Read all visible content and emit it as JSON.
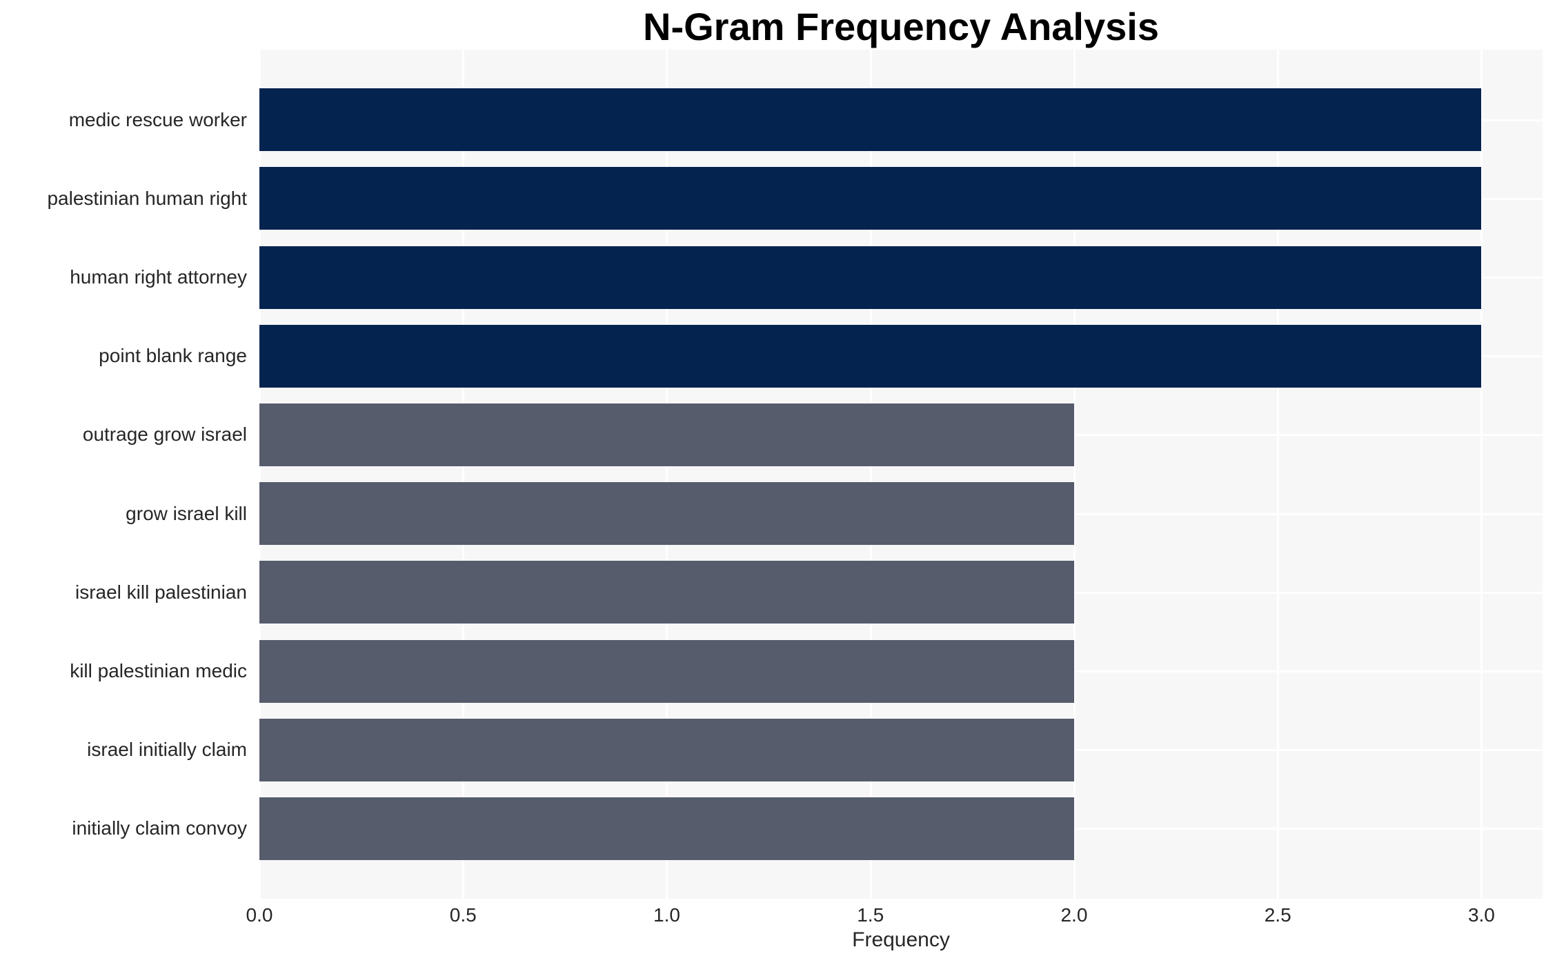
{
  "chart_data": {
    "type": "bar",
    "orientation": "horizontal",
    "title": "N-Gram Frequency Analysis",
    "xlabel": "Frequency",
    "ylabel": "",
    "categories": [
      "medic rescue worker",
      "palestinian human right",
      "human right attorney",
      "point blank range",
      "outrage grow israel",
      "grow israel kill",
      "israel kill palestinian",
      "kill palestinian medic",
      "israel initially claim",
      "initially claim convoy"
    ],
    "values": [
      3,
      3,
      3,
      3,
      2,
      2,
      2,
      2,
      2,
      2
    ],
    "bar_colors": [
      "#04234E",
      "#04234E",
      "#04234E",
      "#04234E",
      "#565C6C",
      "#565C6C",
      "#565C6C",
      "#565C6C",
      "#565C6C",
      "#565C6C"
    ],
    "xticks": [
      "0.0",
      "0.5",
      "1.0",
      "1.5",
      "2.0",
      "2.5",
      "3.0"
    ],
    "xtick_values": [
      0,
      0.5,
      1,
      1.5,
      2,
      2.5,
      3
    ],
    "xlim": [
      0,
      3.15
    ],
    "grid": true,
    "legend": false,
    "colors": {
      "plot_background": "#F7F7F8",
      "grid_line": "#FFFFFF",
      "tick_text": "#262626",
      "title_text": "#000000"
    }
  }
}
